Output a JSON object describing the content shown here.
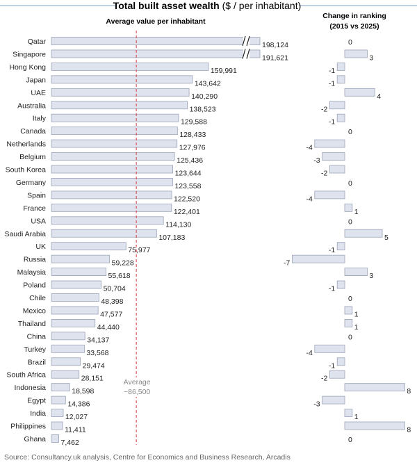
{
  "title_bold": "Total built asset wealth",
  "title_rest": " ($ / per inhabitant)",
  "chart_data": {
    "type": "bar",
    "orientation": "horizontal",
    "panels": [
      {
        "name": "value",
        "title": "Average value per inhabitant",
        "average_line": {
          "value": 86500,
          "label_line1": "Average",
          "label_line2": "~86,500"
        },
        "axis_break_for": [
          "Qatar",
          "Singapore"
        ]
      },
      {
        "name": "ranking",
        "title_line1": "Change in ranking",
        "title_line2": "(2015 vs 2025)"
      }
    ],
    "rows": [
      {
        "country": "Qatar",
        "value": 198124,
        "value_label": "198,124",
        "rank_change": 0
      },
      {
        "country": "Singapore",
        "value": 191621,
        "value_label": "191,621",
        "rank_change": 3
      },
      {
        "country": "Hong Kong",
        "value": 159991,
        "value_label": "159,991",
        "rank_change": -1
      },
      {
        "country": "Japan",
        "value": 143642,
        "value_label": "143,642",
        "rank_change": -1
      },
      {
        "country": "UAE",
        "value": 140290,
        "value_label": "140,290",
        "rank_change": 4
      },
      {
        "country": "Australia",
        "value": 138523,
        "value_label": "138,523",
        "rank_change": -2
      },
      {
        "country": "Italy",
        "value": 129588,
        "value_label": "129,588",
        "rank_change": -1
      },
      {
        "country": "Canada",
        "value": 128433,
        "value_label": "128,433",
        "rank_change": 0
      },
      {
        "country": "Netherlands",
        "value": 127976,
        "value_label": "127,976",
        "rank_change": -4
      },
      {
        "country": "Belgium",
        "value": 125436,
        "value_label": "125,436",
        "rank_change": -3
      },
      {
        "country": "South Korea",
        "value": 123644,
        "value_label": "123,644",
        "rank_change": -2
      },
      {
        "country": "Germany",
        "value": 123558,
        "value_label": "123,558",
        "rank_change": 0
      },
      {
        "country": "Spain",
        "value": 122520,
        "value_label": "122,520",
        "rank_change": -4
      },
      {
        "country": "France",
        "value": 122401,
        "value_label": "122,401",
        "rank_change": 1
      },
      {
        "country": "USA",
        "value": 114130,
        "value_label": "114,130",
        "rank_change": 0
      },
      {
        "country": "Saudi Arabia",
        "value": 107183,
        "value_label": "107,183",
        "rank_change": 5
      },
      {
        "country": "UK",
        "value": 75977,
        "value_label": "75,977",
        "rank_change": -1
      },
      {
        "country": "Russia",
        "value": 59228,
        "value_label": "59,228",
        "rank_change": -7
      },
      {
        "country": "Malaysia",
        "value": 55618,
        "value_label": "55,618",
        "rank_change": 3
      },
      {
        "country": "Poland",
        "value": 50704,
        "value_label": "50,704",
        "rank_change": -1
      },
      {
        "country": "Chile",
        "value": 48398,
        "value_label": "48,398",
        "rank_change": 0
      },
      {
        "country": "Mexico",
        "value": 47577,
        "value_label": "47,577",
        "rank_change": 1
      },
      {
        "country": "Thailand",
        "value": 44440,
        "value_label": "44,440",
        "rank_change": 1
      },
      {
        "country": "China",
        "value": 34137,
        "value_label": "34,137",
        "rank_change": 0
      },
      {
        "country": "Turkey",
        "value": 33568,
        "value_label": "33,568",
        "rank_change": -4
      },
      {
        "country": "Brazil",
        "value": 29474,
        "value_label": "29,474",
        "rank_change": -1
      },
      {
        "country": "South Africa",
        "value": 28151,
        "value_label": "28,151",
        "rank_change": -2
      },
      {
        "country": "Indonesia",
        "value": 18598,
        "value_label": "18,598",
        "rank_change": 8
      },
      {
        "country": "Egypt",
        "value": 14386,
        "value_label": "14,386",
        "rank_change": -3
      },
      {
        "country": "India",
        "value": 12027,
        "value_label": "12,027",
        "rank_change": 1
      },
      {
        "country": "Philippines",
        "value": 11411,
        "value_label": "11,411",
        "rank_change": 8
      },
      {
        "country": "Ghana",
        "value": 7462,
        "value_label": "7,462",
        "rank_change": 0
      }
    ]
  },
  "source": "Source: Consultancy.uk analysis, Centre for Economics and Business Research, Arcadis"
}
